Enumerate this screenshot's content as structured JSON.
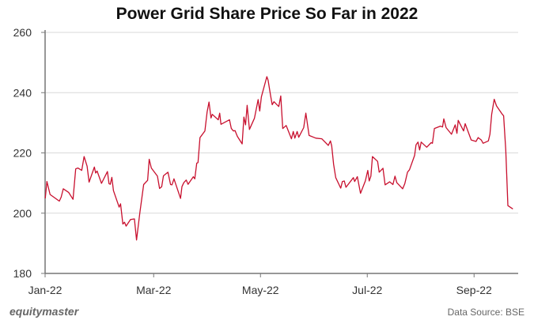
{
  "chart_data": {
    "type": "line",
    "title": "Power Grid Share Price So Far in 2022",
    "xlabel": "",
    "ylabel": "",
    "x_unit": "days since Jan 1, 2022",
    "ylim": [
      180,
      260
    ],
    "xlim": [
      0,
      265
    ],
    "yticks": [
      180,
      200,
      220,
      240,
      260
    ],
    "xticks": [
      {
        "label": "Jan-22",
        "x": 0
      },
      {
        "label": "Mar-22",
        "x": 61
      },
      {
        "label": "May-22",
        "x": 121
      },
      {
        "label": "Jul-22",
        "x": 181
      },
      {
        "label": "Sep-22",
        "x": 241
      }
    ],
    "grid": "horizontal",
    "line_color": "#c8102e",
    "series": [
      {
        "name": "Power Grid",
        "x": [
          0.1,
          1.0,
          2.8,
          8.0,
          9.0,
          10.2,
          13.2,
          15.7,
          17.2,
          18.4,
          20.6,
          21.9,
          23.6,
          24.7,
          27.7,
          28.4,
          29.2,
          31.7,
          35.0,
          35.9,
          36.6,
          37.5,
          38.4,
          41.6,
          42.4,
          43.7,
          44.6,
          45.5,
          48.0,
          50.2,
          51.4,
          53.2,
          55.4,
          57.6,
          58.5,
          59.7,
          63.1,
          64.3,
          65.5,
          66.5,
          69.0,
          70.5,
          71.3,
          72.4,
          76.1,
          76.9,
          77.9,
          79.3,
          80.3,
          83.3,
          84.1,
          85.2,
          85.9,
          87.0,
          89.8,
          91.0,
          92.1,
          93.2,
          93.9,
          97.3,
          98.1,
          98.8,
          103.6,
          104.6,
          105.8,
          106.7,
          108.0,
          110.7,
          111.7,
          112.6,
          113.5,
          114.8,
          117.6,
          119.7,
          120.6,
          121.5,
          124.6,
          125.3,
          126.7,
          127.6,
          128.6,
          131.3,
          132.4,
          133.5,
          135.4,
          138.4,
          139.4,
          140.3,
          141.6,
          142.5,
          145.3,
          146.5,
          148.3,
          152.1,
          155.4,
          159.1,
          160.3,
          161.0,
          162.1,
          163.3,
          166.1,
          167.0,
          168.1,
          169.0,
          173.2,
          173.9,
          175.4,
          177.2,
          179.9,
          181.3,
          182.1,
          183.0,
          183.9,
          186.8,
          187.7,
          189.8,
          191.0,
          193.6,
          195.4,
          196.6,
          197.6,
          200.9,
          202.1,
          203.6,
          204.7,
          207.6,
          208.4,
          209.5,
          210.4,
          211.3,
          214.4,
          216.9,
          217.6,
          218.7,
          222.1,
          223.3,
          224.0,
          225.3,
          228.3,
          230.4,
          231.4,
          232.1,
          235.1,
          236.0,
          239.4,
          242.1,
          243.3,
          245.0,
          246.1,
          249.0,
          249.9,
          250.9,
          252.3,
          253.6,
          256.9,
          257.6,
          258.8,
          260.0,
          262.8
        ],
        "y": [
          204.9,
          210.5,
          206.2,
          204.0,
          205.3,
          208.1,
          206.9,
          204.6,
          214.7,
          215.0,
          214.2,
          218.8,
          215.6,
          210.3,
          215.3,
          213.3,
          214.0,
          209.9,
          213.8,
          209.8,
          209.6,
          211.9,
          207.5,
          202.0,
          203.1,
          196.4,
          197.0,
          195.7,
          197.9,
          198.1,
          191.1,
          200.0,
          209.5,
          210.9,
          217.9,
          215.0,
          212.3,
          208.2,
          208.8,
          212.4,
          213.6,
          209.5,
          209.4,
          211.4,
          204.9,
          208.8,
          210.1,
          211.0,
          209.6,
          212.1,
          211.4,
          216.6,
          216.8,
          225.1,
          227.3,
          233.6,
          236.9,
          231.6,
          232.8,
          231.0,
          233.2,
          229.5,
          231.0,
          228.1,
          227.3,
          227.4,
          225.5,
          223.0,
          231.9,
          229.3,
          235.8,
          227.8,
          231.5,
          237.7,
          233.9,
          238.6,
          245.3,
          244.1,
          238.9,
          236.0,
          237.0,
          235.4,
          238.9,
          228.1,
          229.1,
          224.7,
          227.1,
          224.9,
          227.1,
          225.2,
          228.4,
          233.2,
          225.8,
          224.9,
          224.7,
          222.5,
          224.0,
          222.3,
          216.2,
          211.8,
          208.3,
          210.5,
          210.7,
          208.6,
          211.8,
          210.5,
          212.1,
          206.6,
          210.7,
          214.2,
          210.7,
          212.3,
          218.8,
          217.2,
          213.6,
          214.9,
          209.4,
          210.4,
          209.5,
          212.3,
          210.1,
          208.1,
          209.8,
          213.6,
          214.4,
          219.2,
          222.7,
          223.6,
          221.0,
          223.6,
          221.9,
          223.4,
          223.2,
          228.1,
          228.9,
          228.6,
          231.3,
          228.4,
          226.2,
          229.3,
          226.5,
          230.8,
          227.3,
          229.7,
          224.3,
          223.8,
          225.1,
          224.3,
          223.2,
          224.0,
          226.2,
          232.8,
          237.8,
          235.6,
          232.8,
          232.3,
          221.0,
          202.5,
          201.4
        ]
      }
    ]
  },
  "footer": {
    "brand": "equitymaster",
    "source": "Data Source: BSE"
  }
}
